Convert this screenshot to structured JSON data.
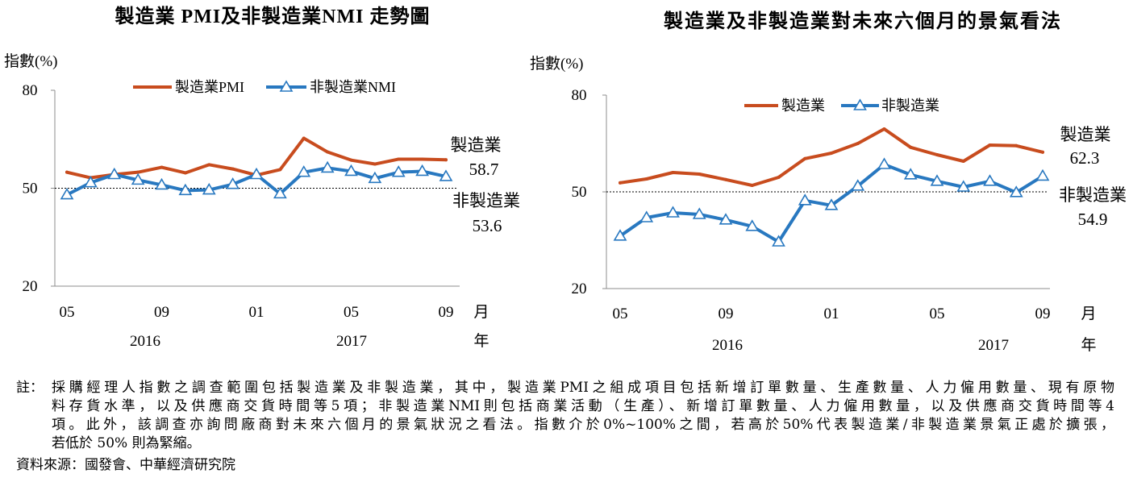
{
  "chart_data": [
    {
      "type": "line",
      "title": "製造業 PMI及非製造業NMI 走勢圖",
      "ylabel": "指數(%)",
      "ylim": [
        20,
        80
      ],
      "yticks": [
        80,
        50,
        20
      ],
      "x": [
        "2016-05",
        "2016-06",
        "2016-07",
        "2016-08",
        "2016-09",
        "2016-10",
        "2016-11",
        "2016-12",
        "2017-01",
        "2017-02",
        "2017-03",
        "2017-04",
        "2017-05",
        "2017-06",
        "2017-07",
        "2017-08",
        "2017-09"
      ],
      "xticks": [
        {
          "x": "2016-05",
          "label": "05"
        },
        {
          "x": "2016-09",
          "label": "09"
        },
        {
          "x": "2017-01",
          "label": "01"
        },
        {
          "x": "2017-05",
          "label": "05"
        },
        {
          "x": "2017-09",
          "label": "09"
        }
      ],
      "x_unit": "月",
      "years": [
        {
          "label": "2016"
        },
        {
          "label": "2017"
        }
      ],
      "year_unit": "年",
      "reference_line": 50,
      "grid": false,
      "legend_position": "top",
      "series": [
        {
          "name": "製造業PMI",
          "color": "#C84C1E",
          "values": [
            54.9,
            53.2,
            54.2,
            54.9,
            56.4,
            54.7,
            57.2,
            55.9,
            54.0,
            55.7,
            65.3,
            61.1,
            58.6,
            57.4,
            58.9,
            58.9,
            58.7
          ]
        },
        {
          "name": "非製造業NMI",
          "color": "#2878C0",
          "marker": "triangle",
          "values": [
            48.0,
            51.7,
            54.2,
            52.5,
            51.0,
            49.3,
            49.5,
            51.2,
            54.2,
            48.3,
            54.9,
            56.2,
            55.2,
            53.0,
            54.9,
            55.2,
            53.6
          ]
        }
      ],
      "annotations": [
        {
          "label": "製造業",
          "value": "58.7"
        },
        {
          "label": "非製造業",
          "value": "53.6"
        }
      ]
    },
    {
      "type": "line",
      "title": "製造業及非製造業對未來六個月的景氣看法",
      "ylabel": "指數(%)",
      "ylim": [
        20,
        80
      ],
      "yticks": [
        80,
        50,
        20
      ],
      "x": [
        "2016-05",
        "2016-06",
        "2016-07",
        "2016-08",
        "2016-09",
        "2016-10",
        "2016-11",
        "2016-12",
        "2017-01",
        "2017-02",
        "2017-03",
        "2017-04",
        "2017-05",
        "2017-06",
        "2017-07",
        "2017-08",
        "2017-09"
      ],
      "xticks": [
        {
          "x": "2016-05",
          "label": "05"
        },
        {
          "x": "2016-09",
          "label": "09"
        },
        {
          "x": "2017-01",
          "label": "01"
        },
        {
          "x": "2017-05",
          "label": "05"
        },
        {
          "x": "2017-09",
          "label": "09"
        }
      ],
      "x_unit": "月",
      "years": [
        {
          "label": "2016"
        },
        {
          "label": "2017"
        }
      ],
      "year_unit": "年",
      "reference_line": 50,
      "grid": false,
      "legend_position": "top",
      "series": [
        {
          "name": "製造業",
          "color": "#C84C1E",
          "values": [
            52.8,
            54.0,
            56.0,
            55.5,
            53.8,
            52.0,
            54.5,
            60.3,
            62.0,
            65.0,
            69.5,
            63.8,
            61.5,
            59.5,
            64.5,
            64.3,
            62.3
          ]
        },
        {
          "name": "非製造業",
          "color": "#2878C0",
          "marker": "triangle",
          "values": [
            36.3,
            42.0,
            43.5,
            43.0,
            41.3,
            39.3,
            34.5,
            47.3,
            45.8,
            51.8,
            58.5,
            55.3,
            53.3,
            51.5,
            53.3,
            49.8,
            54.9
          ]
        }
      ],
      "annotations": [
        {
          "label": "製造業",
          "value": "62.3"
        },
        {
          "label": "非製造業",
          "value": "54.9"
        }
      ]
    }
  ],
  "note": {
    "label": "註：",
    "lines": [
      "採購經理人指數之調查範圍包括製造業及非製造業，其中，製造業PMI之組成項目包括新增訂單數量、生產數量、人力僱用數量、現有原物",
      "料存貨水準，以及供應商交貨時間等5項；非製造業NMI則包括商業活動（生產）、新增訂單數量、人力僱用數量，以及供應商交貨時間等4",
      "項。此外，該調查亦詢問廠商對未來六個月的景氣狀況之看法。指數介於0%~100%之間，若高於50%代表製造業/非製造業景氣正處於擴張，",
      "若低於 50% 則為緊縮。"
    ],
    "source": "資料來源：國發會、中華經濟研究院"
  }
}
